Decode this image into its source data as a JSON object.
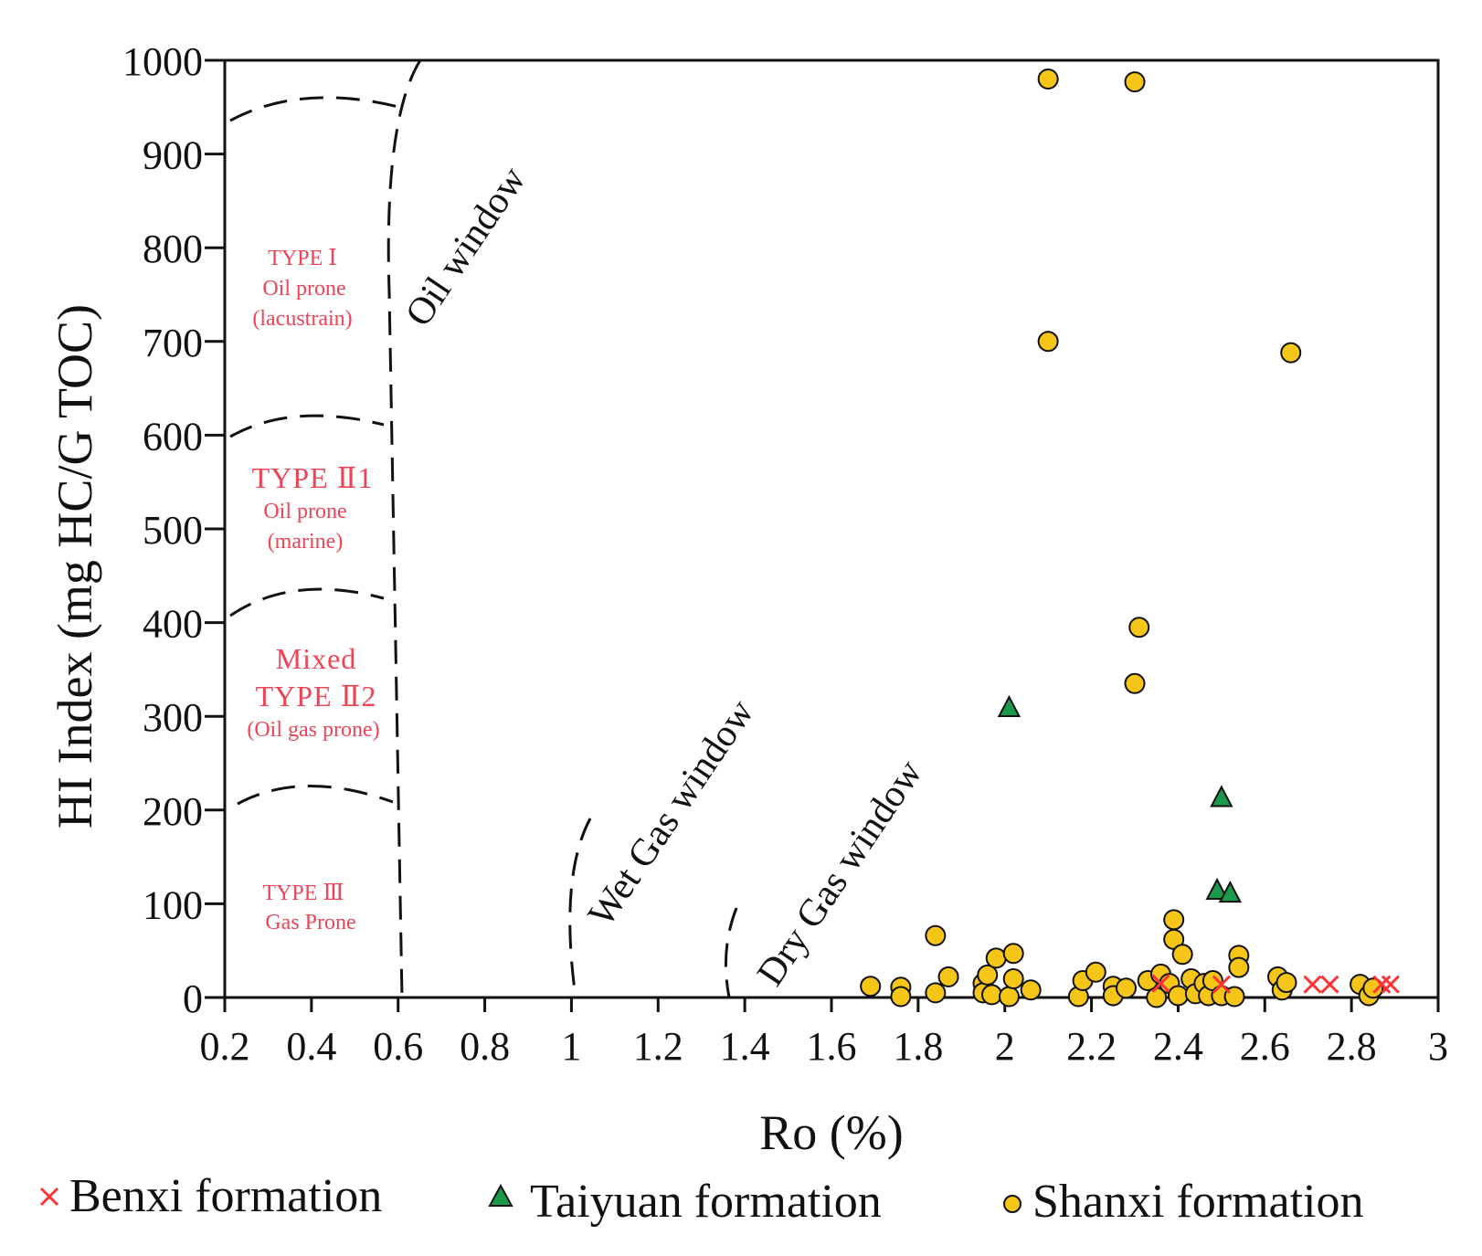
{
  "chart_data": {
    "type": "scatter",
    "title": "",
    "xlabel": "Ro (%)",
    "ylabel": "HI Index (mg HC/G TOC)",
    "xlim": [
      0.2,
      3.0
    ],
    "ylim": [
      0,
      1000
    ],
    "x_ticks": [
      "0.2",
      "0.4",
      "0.6",
      "0.8",
      "1",
      "1.2",
      "1.4",
      "1.6",
      "1.8",
      "2",
      "2.2",
      "2.4",
      "2.6",
      "2.8",
      "3"
    ],
    "y_ticks": [
      "0",
      "100",
      "200",
      "300",
      "400",
      "500",
      "600",
      "700",
      "800",
      "900",
      "1000"
    ],
    "kerogen_types": [
      {
        "lines": [
          "TYPE Ⅰ",
          "Oil prone",
          "(lacustrain)"
        ]
      },
      {
        "lines": [
          "TYPE Ⅱ1",
          "Oil prone",
          "(marine)"
        ]
      },
      {
        "lines": [
          "Mixed",
          "TYPE Ⅱ2",
          "(Oil gas prone)"
        ]
      },
      {
        "lines": [
          "TYPE Ⅲ",
          "Gas Prone"
        ]
      }
    ],
    "maturity_windows": [
      "Oil window",
      "Wet Gas window",
      "Dry Gas window"
    ],
    "series": [
      {
        "name": "Benxi formation",
        "marker": "x",
        "color": "#ff3333",
        "points": [
          [
            2.36,
            15
          ],
          [
            2.5,
            14
          ],
          [
            2.71,
            14
          ],
          [
            2.75,
            14
          ],
          [
            2.87,
            14
          ],
          [
            2.89,
            14
          ]
        ]
      },
      {
        "name": "Taiyuan formation",
        "marker": "triangle",
        "color": "#1a9a4a",
        "points": [
          [
            2.01,
            308
          ],
          [
            2.5,
            212
          ],
          [
            2.49,
            113
          ],
          [
            2.52,
            110
          ]
        ]
      },
      {
        "name": "Shanxi formation",
        "marker": "circle",
        "color": "#f5c518",
        "points": [
          [
            2.1,
            980
          ],
          [
            2.3,
            977
          ],
          [
            2.1,
            700
          ],
          [
            2.66,
            688
          ],
          [
            2.31,
            395
          ],
          [
            2.3,
            335
          ],
          [
            1.84,
            66
          ],
          [
            2.39,
            83
          ],
          [
            2.39,
            62
          ],
          [
            2.41,
            46
          ],
          [
            2.54,
            45
          ],
          [
            2.54,
            32
          ],
          [
            1.69,
            12
          ],
          [
            1.76,
            11
          ],
          [
            1.76,
            1
          ],
          [
            1.84,
            5
          ],
          [
            1.87,
            22
          ],
          [
            1.95,
            15
          ],
          [
            1.95,
            5
          ],
          [
            1.96,
            24
          ],
          [
            1.97,
            3
          ],
          [
            1.98,
            42
          ],
          [
            2.01,
            1
          ],
          [
            2.02,
            47
          ],
          [
            2.02,
            20
          ],
          [
            2.06,
            8
          ],
          [
            2.17,
            1
          ],
          [
            2.18,
            18
          ],
          [
            2.21,
            27
          ],
          [
            2.25,
            12
          ],
          [
            2.25,
            2
          ],
          [
            2.28,
            10
          ],
          [
            2.33,
            18
          ],
          [
            2.35,
            0
          ],
          [
            2.36,
            25
          ],
          [
            2.38,
            15
          ],
          [
            2.4,
            2
          ],
          [
            2.43,
            20
          ],
          [
            2.44,
            4
          ],
          [
            2.46,
            15
          ],
          [
            2.47,
            2
          ],
          [
            2.48,
            18
          ],
          [
            2.5,
            2
          ],
          [
            2.53,
            1
          ],
          [
            2.63,
            22
          ],
          [
            2.64,
            8
          ],
          [
            2.65,
            16
          ],
          [
            2.82,
            14
          ],
          [
            2.84,
            2
          ],
          [
            2.85,
            10
          ]
        ]
      }
    ],
    "legend_position": "bottom"
  }
}
